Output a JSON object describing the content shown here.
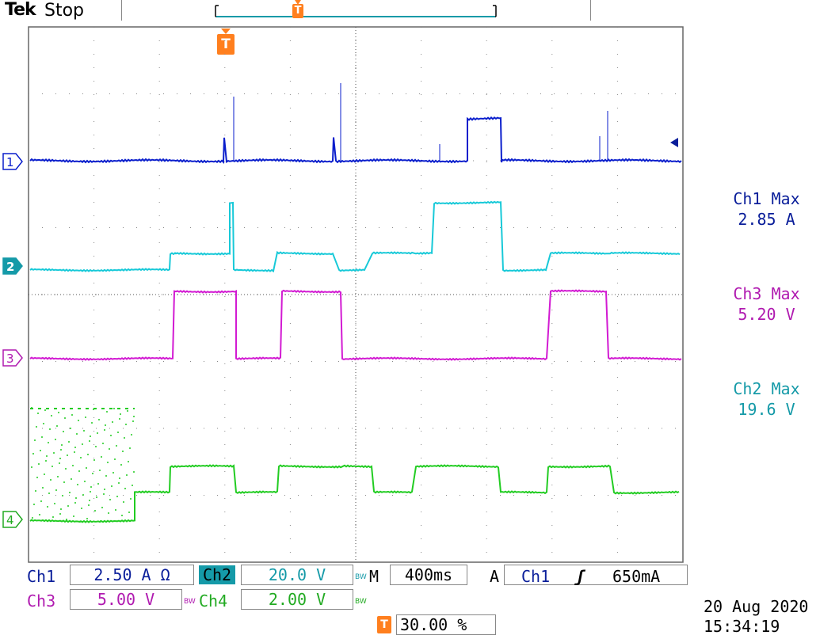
{
  "header": {
    "brand": "Tek",
    "status": "Stop",
    "trigger_marker": "T"
  },
  "channels": [
    {
      "id": "1",
      "color": "#0a1ecc"
    },
    {
      "id": "2",
      "color": "#17c9d8"
    },
    {
      "id": "3",
      "color": "#d21ad2"
    },
    {
      "id": "4",
      "color": "#22cc22"
    }
  ],
  "measurements": [
    {
      "name": "Ch1 Max",
      "value": "2.85 A",
      "color": "#0a1e9a"
    },
    {
      "name": "Ch3 Max",
      "value": "5.20 V",
      "color": "#b01ab0"
    },
    {
      "name": "Ch2 Max",
      "value": "19.6 V",
      "color": "#159aa8"
    }
  ],
  "settings": {
    "ch1_label": "Ch1",
    "ch1_scale": "2.50 A Ω",
    "ch2_label": "Ch2",
    "ch2_scale": "20.0 V",
    "ch3_label": "Ch3",
    "ch3_scale": "5.00 V",
    "ch4_label": "Ch4",
    "ch4_scale": "2.00 V",
    "bw": "BW",
    "timebase_prefix": "M",
    "timebase": "400ms",
    "trigger_mode": "A",
    "trigger_source": "Ch1",
    "trigger_slope": "ʃ",
    "trigger_level": "650mA",
    "trigger_position": "30.00 %"
  },
  "datetime": {
    "date": "20 Aug 2020",
    "time": "15:34:19"
  }
}
